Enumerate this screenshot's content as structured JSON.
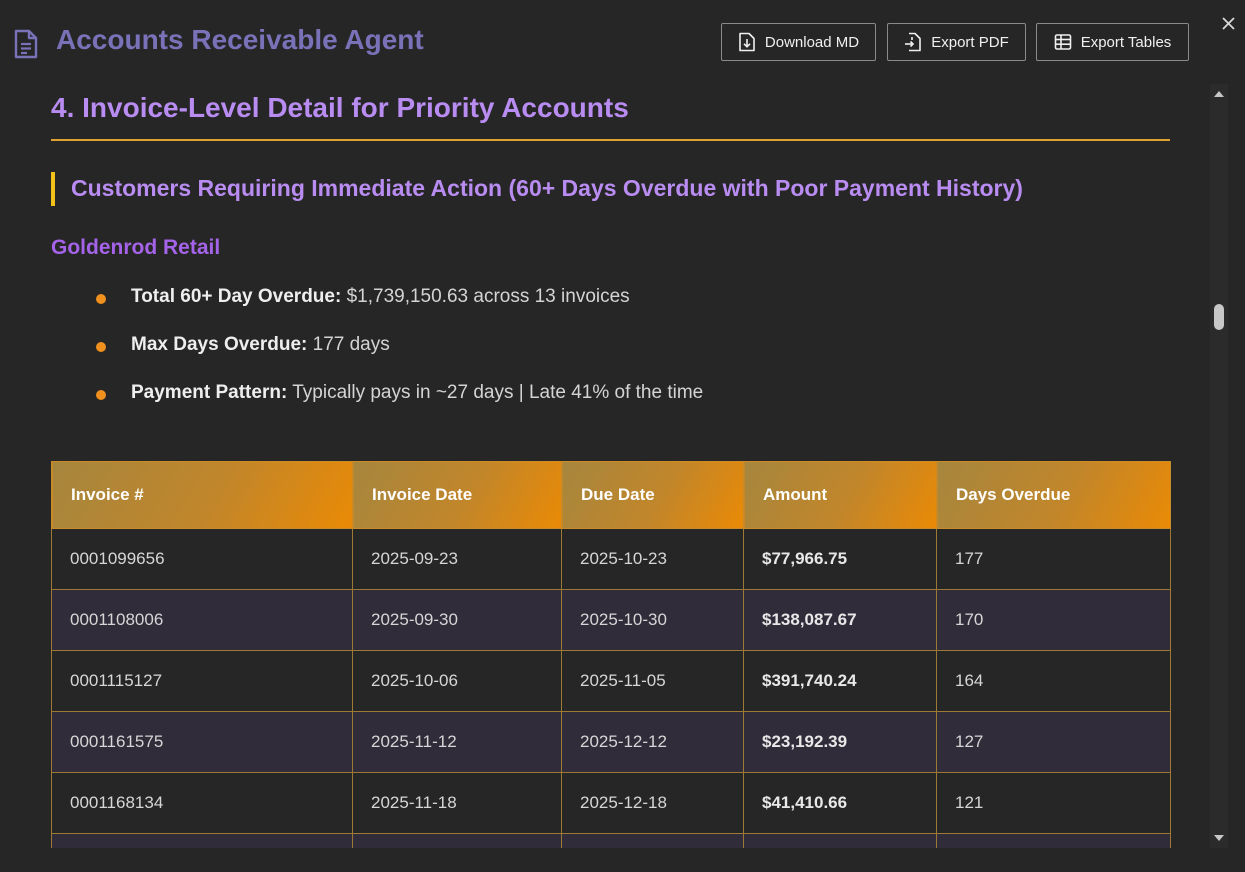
{
  "app": {
    "title": "Accounts Receivable Agent",
    "icon": "document-icon"
  },
  "toolbar": {
    "download_md": "Download MD",
    "export_pdf": "Export PDF",
    "export_tables": "Export Tables"
  },
  "section": {
    "heading": "4. Invoice-Level Detail for Priority Accounts",
    "subheading": "Customers Requiring Immediate Action (60+ Days Overdue with Poor Payment History)"
  },
  "customer": {
    "name": "Goldenrod Retail",
    "bullets": [
      {
        "label": "Total 60+ Day Overdue:",
        "value": "$1,739,150.63 across 13 invoices"
      },
      {
        "label": "Max Days Overdue:",
        "value": "177 days"
      },
      {
        "label": "Payment Pattern:",
        "value": "Typically pays in ~27 days | Late 41% of the time"
      }
    ]
  },
  "table": {
    "headers": [
      "Invoice #",
      "Invoice Date",
      "Due Date",
      "Amount",
      "Days Overdue"
    ],
    "rows": [
      [
        "0001099656",
        "2025-09-23",
        "2025-10-23",
        "$77,966.75",
        "177"
      ],
      [
        "0001108006",
        "2025-09-30",
        "2025-10-30",
        "$138,087.67",
        "170"
      ],
      [
        "0001115127",
        "2025-10-06",
        "2025-11-05",
        "$391,740.24",
        "164"
      ],
      [
        "0001161575",
        "2025-11-12",
        "2025-12-12",
        "$23,192.39",
        "127"
      ],
      [
        "0001168134",
        "2025-11-18",
        "2025-12-18",
        "$41,410.66",
        "121"
      ],
      [
        "",
        "",
        "",
        "",
        ""
      ]
    ]
  },
  "colors": {
    "title": "#7a72b8",
    "heading": "#b98cf2",
    "accent_orange": "#f0901e",
    "rule": "#e0a22e",
    "quote_bar": "#f2c21b"
  }
}
